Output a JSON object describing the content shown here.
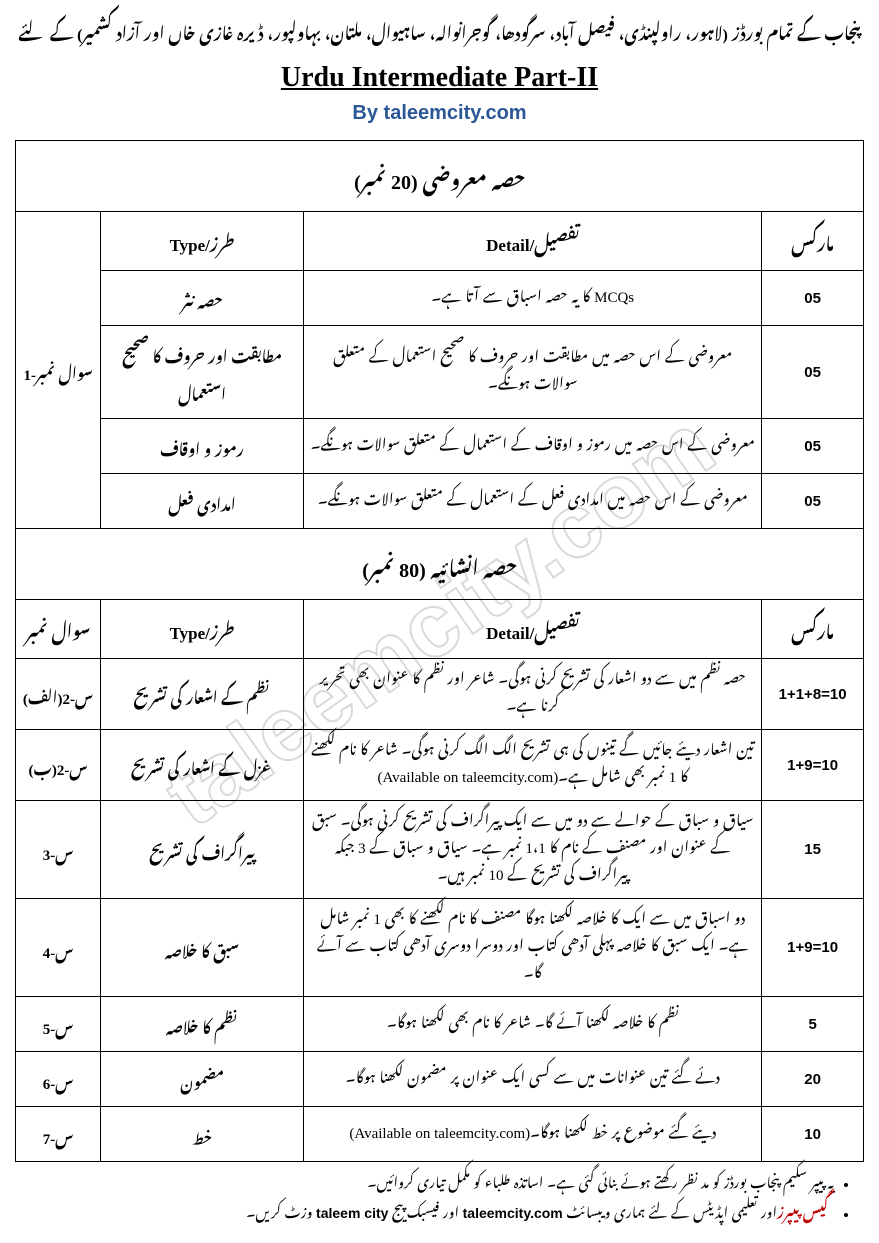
{
  "header": {
    "top_urdu": "پنجاب کے تمام بورڈز (لاہور، راولپنڈی، فیصل آباد، سرگودھا، گوجرانوالہ، ساہیوال، ملتان، بہاولپور، ڈیرہ غازی خاں اور آزاد کشمیر) کے لئے",
    "title": "Urdu Intermediate Part-II",
    "subtitle": "By taleemcity.com"
  },
  "watermark": "taleemcity.com",
  "section1": {
    "title": "حصہ معروضی (20 نمبر)",
    "question_label": "سوال نمبر-1",
    "headers": {
      "type": "طرز/Type",
      "detail": "تفصیل/Detail",
      "marks": "مارکس"
    },
    "rows": [
      {
        "type": "حصہ نثر",
        "detail": "MCQs کا یہ حصہ اسباق سے آتا ہے۔",
        "marks": "05"
      },
      {
        "type": "مطابقت اور حروف کا صحیح استعمال",
        "detail": "معروضی کے اس حصہ میں مطابقت اور حروف کا صحیح استعمال کے متعلق سوالات ہونگے۔",
        "marks": "05"
      },
      {
        "type": "رموز و اوقاف",
        "detail": "معروضی کے اس حصہ میں رموز و اوقاف کے استعمال کے متعلق سوالات ہونگے۔",
        "marks": "05"
      },
      {
        "type": "امدادی فعل",
        "detail": "معروضی کے اس حصہ میں امدادی فعل کے استعمال کے متعلق سوالات ہونگے۔",
        "marks": "05"
      }
    ]
  },
  "section2": {
    "title": "حصہ انشائیہ (80 نمبر)",
    "headers": {
      "qnum": "سوال نمبر",
      "type": "طرز/Type",
      "detail": "تفصیل/Detail",
      "marks": "مارکس"
    },
    "rows": [
      {
        "qnum": "س-2(الف)",
        "type": "نظم کے اشعار کی تشریح",
        "detail": "حصہ نظم میں سے دو اشعار کی تشریح کرنی ہوگی۔ شاعر اور نظم کا عنوان بھی تحریر کرنا ہے۔",
        "marks": "1+1+8=10"
      },
      {
        "qnum": "س-2(ب)",
        "type": "غزل کے اشعار کی تشریح",
        "detail": "تین اشعار دیئے جائیں گے تینوں کی ہی تشریح الگ الگ کرنی ہوگی۔ شاعر کا نام لکھنے کا 1 نمبر بھی شامل ہے۔(Available on taleemcity.com)",
        "marks": "1+9=10"
      },
      {
        "qnum": "س-3",
        "type": "پیراگراف کی تشریح",
        "detail": "سیاق و سباق کے حوالے سے دو میں سے ایک پیراگراف کی تشریح کرنی ہوگی۔ سبق کے عنوان اور مصنف کے نام کا 1،1 نمبر ہے۔ سیاق و سباق کے 3 جبکہ پیراگراف کی تشریح کے 10 نمبر ہیں۔",
        "marks": "15"
      },
      {
        "qnum": "س-4",
        "type": "سبق کا خلاصہ",
        "detail": "دو اسباق میں سے ایک کا خلاصہ لکھنا ہوگا مصنف کا نام لکھنے کا بھی 1 نمبر شامل ہے۔ ایک سبق کا خلاصہ پہلی آدھی کتاب اور دوسرا دوسری آدھی کتاب سے آئے گا۔",
        "marks": "1+9=10"
      },
      {
        "qnum": "س-5",
        "type": "نظم کا خلاصہ",
        "detail": "نظم کا خلاصہ لکھنا آئے گا۔ شاعر کا نام بھی لکھنا ہوگا۔",
        "marks": "5"
      },
      {
        "qnum": "س-6",
        "type": "مضمون",
        "detail": "دئے گئے تین عنوانات میں سے کسی ایک عنوان پر مضمون لکھنا ہوگا۔",
        "marks": "20"
      },
      {
        "qnum": "س-7",
        "type": "خط",
        "detail": "دیئے گئے موضوع پر خط لکھنا ہوگا۔(Available on taleemcity.com)",
        "marks": "10"
      }
    ]
  },
  "footer": {
    "note1": "یہ پیپر سکیم پنجاب بورڈز کو مد نظر رکھتے ہوئے بنائی گئی ہے۔ اساتذہ طلباء کو مکمل تیاری کروائیں۔",
    "note2_red": "گیس پیپرز",
    "note2_mid": "اور تعلیمی اپڈیٹس کے لئے ہماری ویبسائٹ ",
    "note2_site1": "taleemcity.com",
    "note2_mid2": " اور فیسبک پیج ",
    "note2_site2": "taleem city",
    "note2_end": " وزٹ کریں۔"
  },
  "colors": {
    "subtitle": "#2b5797",
    "red": "#c00000",
    "border": "#000000",
    "background": "#ffffff"
  }
}
